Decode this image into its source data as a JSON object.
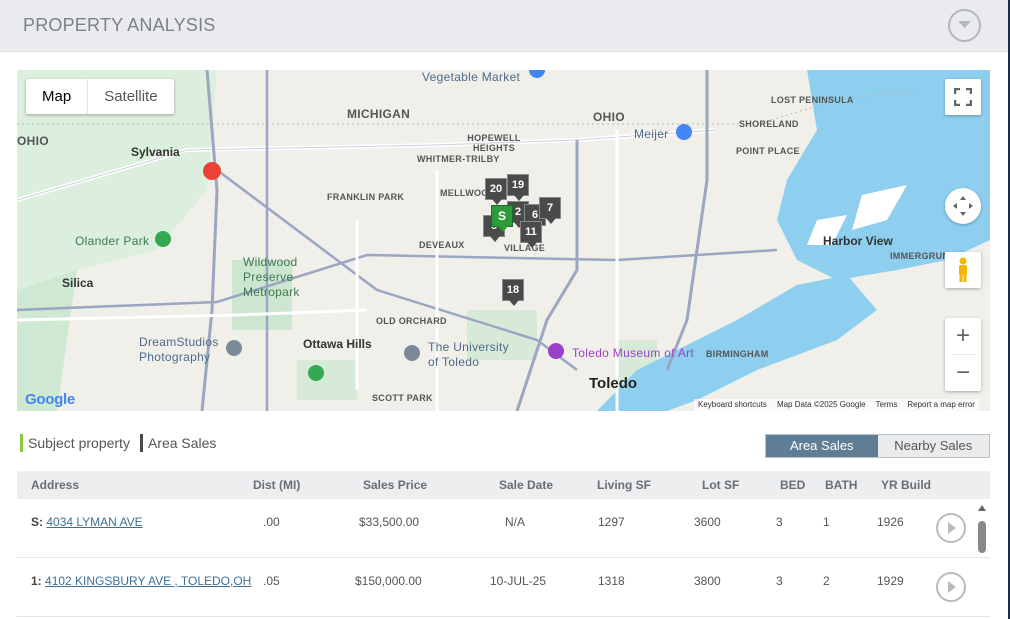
{
  "header": {
    "title": "PROPERTY ANALYSIS"
  },
  "map": {
    "type_buttons": [
      "Map",
      "Satellite"
    ],
    "labels": {
      "vegetable_market": "Vegetable Market",
      "michigan": "MICHIGAN",
      "ohio_top": "OHIO",
      "ohio_left": "OHIO",
      "meijer": "Meijer",
      "lost_peninsula": "LOST PENINSULA",
      "shoreland": "SHORELAND",
      "point_place": "POINT PLACE",
      "sylvania": "Sylvania",
      "hopewell_heights": "HOPEWELL HEIGHTS",
      "whitmer_trilby": "WHITMER-TRILBY",
      "franklin_park": "FRANKLIN PARK",
      "mellwood": "MELLWOOD",
      "olander_park": "Olander Park",
      "deveaux": "DEVEAUX",
      "village": "VILLAGE",
      "harbor_view": "Harbor View",
      "immergrun": "IMMERGRUN",
      "silica": "Silica",
      "wildwood": "Wildwood Preserve Metropark",
      "old_orchard": "OLD ORCHARD",
      "dreamstudios": "DreamStudios Photography",
      "ottawa_hills": "Ottawa Hills",
      "university": "The University of Toledo",
      "toledo_museum": "Toledo Museum of Art",
      "birmingham": "BIRMINGHAM",
      "toledo": "Toledo",
      "scott_park": "SCOTT PARK"
    },
    "markers": [
      "20",
      "19",
      "2",
      "6",
      "7",
      "8",
      "11",
      "S",
      "18"
    ],
    "footer": [
      "Keyboard shortcuts",
      "Map Data ©2025 Google",
      "Terms",
      "Report a map error"
    ],
    "google": "Google",
    "zoom_in": "+",
    "zoom_out": "−"
  },
  "legend": {
    "subject": {
      "label": "Subject property",
      "color": "#8dc63f"
    },
    "area": {
      "label": "Area Sales",
      "color": "#4a4a4a"
    }
  },
  "toggle": {
    "area_sales": "Area Sales",
    "nearby_sales": "Nearby Sales"
  },
  "table": {
    "headers": [
      "Address",
      "Dist (MI)",
      "Sales Price",
      "Sale Date",
      "Living SF",
      "Lot SF",
      "BED",
      "BATH",
      "YR Build"
    ],
    "rows": [
      {
        "prefix": "S:",
        "address": "4034 LYMAN AVE",
        "dist": ".00",
        "price": "$33,500.00",
        "date": "N/A",
        "living": "1297",
        "lot": "3600",
        "bed": "3",
        "bath": "1",
        "year": "1926"
      },
      {
        "prefix": "1:",
        "address": "4102 KINGSBURY AVE , TOLEDO,OH",
        "dist": ".05",
        "price": "$150,000.00",
        "date": "10-JUL-25",
        "living": "1318",
        "lot": "3800",
        "bed": "3",
        "bath": "2",
        "year": "1929"
      }
    ]
  }
}
